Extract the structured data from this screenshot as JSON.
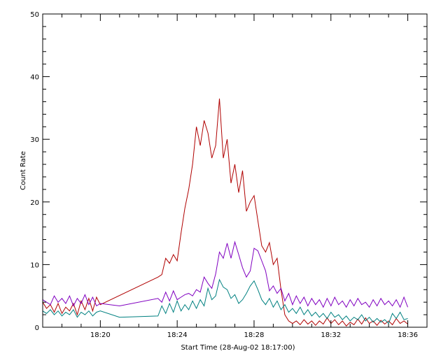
{
  "chart_data": {
    "type": "line",
    "title": "",
    "xlabel": "Start Time (28-Aug-02 18:17:00)",
    "ylabel": "Count Rate",
    "x_unit": "time of day (minutes since 18:00)",
    "xlim": [
      17.0,
      37.0
    ],
    "ylim": [
      0,
      50
    ],
    "x_ticks": [
      {
        "value": 20,
        "label": "18:20"
      },
      {
        "value": 24,
        "label": "18:24"
      },
      {
        "value": 28,
        "label": "18:28"
      },
      {
        "value": 32,
        "label": "18:32"
      },
      {
        "value": 36,
        "label": "18:36"
      }
    ],
    "y_ticks": [
      {
        "value": 0,
        "label": "0"
      },
      {
        "value": 10,
        "label": "10"
      },
      {
        "value": 20,
        "label": "20"
      },
      {
        "value": 30,
        "label": "30"
      },
      {
        "value": 40,
        "label": "40"
      },
      {
        "value": 50,
        "label": "50"
      }
    ],
    "grid": false,
    "legend": "none",
    "series": [
      {
        "color": "#b00000",
        "points": [
          [
            17.0,
            4.0
          ],
          [
            17.2,
            3.0
          ],
          [
            17.4,
            3.6
          ],
          [
            17.6,
            2.4
          ],
          [
            17.8,
            3.8
          ],
          [
            18.0,
            2.2
          ],
          [
            18.2,
            3.2
          ],
          [
            18.4,
            2.6
          ],
          [
            18.6,
            3.8
          ],
          [
            18.8,
            2.0
          ],
          [
            19.0,
            4.2
          ],
          [
            19.2,
            2.8
          ],
          [
            19.4,
            4.6
          ],
          [
            19.6,
            2.6
          ],
          [
            19.8,
            4.8
          ],
          [
            20.0,
            3.6
          ],
          [
            23.0,
            8.0
          ],
          [
            23.2,
            8.4
          ],
          [
            23.4,
            11.0
          ],
          [
            23.6,
            10.2
          ],
          [
            23.8,
            11.6
          ],
          [
            24.0,
            10.6
          ],
          [
            24.2,
            15.0
          ],
          [
            24.4,
            19.0
          ],
          [
            24.6,
            22.0
          ],
          [
            24.8,
            26.0
          ],
          [
            25.0,
            32.0
          ],
          [
            25.2,
            29.0
          ],
          [
            25.4,
            33.0
          ],
          [
            25.6,
            31.0
          ],
          [
            25.8,
            27.0
          ],
          [
            26.0,
            29.0
          ],
          [
            26.2,
            36.5
          ],
          [
            26.4,
            27.0
          ],
          [
            26.6,
            30.0
          ],
          [
            26.8,
            23.0
          ],
          [
            27.0,
            26.0
          ],
          [
            27.2,
            21.5
          ],
          [
            27.4,
            25.0
          ],
          [
            27.6,
            18.5
          ],
          [
            27.8,
            20.0
          ],
          [
            28.0,
            21.0
          ],
          [
            28.2,
            17.0
          ],
          [
            28.4,
            13.0
          ],
          [
            28.6,
            12.0
          ],
          [
            28.8,
            13.5
          ],
          [
            29.0,
            10.0
          ],
          [
            29.2,
            11.0
          ],
          [
            29.4,
            6.0
          ],
          [
            29.6,
            2.0
          ],
          [
            29.8,
            1.0
          ],
          [
            30.0,
            0.6
          ],
          [
            30.2,
            1.0
          ],
          [
            30.4,
            0.4
          ],
          [
            30.6,
            1.2
          ],
          [
            30.8,
            0.5
          ],
          [
            31.0,
            1.0
          ],
          [
            31.2,
            0.3
          ],
          [
            31.4,
            1.0
          ],
          [
            31.6,
            0.5
          ],
          [
            31.8,
            1.5
          ],
          [
            32.0,
            0.6
          ],
          [
            32.2,
            1.2
          ],
          [
            32.4,
            0.4
          ],
          [
            32.6,
            1.0
          ],
          [
            32.8,
            0.2
          ],
          [
            33.0,
            0.8
          ],
          [
            33.2,
            0.4
          ],
          [
            33.4,
            1.3
          ],
          [
            33.6,
            0.5
          ],
          [
            33.8,
            1.5
          ],
          [
            34.0,
            0.6
          ],
          [
            34.2,
            1.0
          ],
          [
            34.4,
            0.3
          ],
          [
            34.6,
            1.1
          ],
          [
            34.8,
            0.5
          ],
          [
            35.0,
            1.0
          ],
          [
            35.2,
            0.4
          ],
          [
            35.4,
            1.4
          ],
          [
            35.6,
            0.6
          ],
          [
            35.8,
            1.0
          ],
          [
            36.0,
            0.5
          ]
        ]
      },
      {
        "color": "#8000c0",
        "points": [
          [
            17.0,
            4.4
          ],
          [
            17.2,
            4.0
          ],
          [
            17.4,
            3.6
          ],
          [
            17.6,
            5.0
          ],
          [
            17.8,
            4.0
          ],
          [
            18.0,
            4.6
          ],
          [
            18.2,
            3.8
          ],
          [
            18.4,
            5.0
          ],
          [
            18.6,
            3.4
          ],
          [
            18.8,
            4.6
          ],
          [
            19.0,
            3.8
          ],
          [
            19.2,
            5.2
          ],
          [
            19.4,
            3.6
          ],
          [
            19.6,
            4.8
          ],
          [
            19.8,
            3.4
          ],
          [
            20.0,
            3.8
          ],
          [
            21.0,
            3.4
          ],
          [
            23.0,
            4.6
          ],
          [
            23.2,
            4.0
          ],
          [
            23.4,
            5.6
          ],
          [
            23.6,
            4.2
          ],
          [
            23.8,
            5.8
          ],
          [
            24.0,
            4.4
          ],
          [
            24.2,
            4.8
          ],
          [
            24.4,
            5.2
          ],
          [
            24.6,
            5.4
          ],
          [
            24.8,
            5.0
          ],
          [
            25.0,
            6.0
          ],
          [
            25.2,
            5.6
          ],
          [
            25.4,
            8.0
          ],
          [
            25.6,
            7.0
          ],
          [
            25.8,
            6.2
          ],
          [
            26.0,
            8.5
          ],
          [
            26.2,
            12.0
          ],
          [
            26.4,
            11.0
          ],
          [
            26.6,
            13.4
          ],
          [
            26.8,
            11.0
          ],
          [
            27.0,
            13.6
          ],
          [
            27.2,
            11.6
          ],
          [
            27.4,
            9.5
          ],
          [
            27.6,
            8.0
          ],
          [
            27.8,
            9.0
          ],
          [
            28.0,
            12.6
          ],
          [
            28.2,
            12.2
          ],
          [
            28.4,
            10.6
          ],
          [
            28.6,
            9.0
          ],
          [
            28.8,
            5.8
          ],
          [
            29.0,
            6.6
          ],
          [
            29.2,
            5.4
          ],
          [
            29.4,
            6.2
          ],
          [
            29.6,
            4.2
          ],
          [
            29.8,
            5.4
          ],
          [
            30.0,
            3.6
          ],
          [
            30.2,
            5.0
          ],
          [
            30.4,
            3.8
          ],
          [
            30.6,
            4.8
          ],
          [
            30.8,
            3.4
          ],
          [
            31.0,
            4.6
          ],
          [
            31.2,
            3.6
          ],
          [
            31.4,
            4.4
          ],
          [
            31.6,
            3.2
          ],
          [
            31.8,
            4.6
          ],
          [
            32.0,
            3.4
          ],
          [
            32.2,
            4.8
          ],
          [
            32.4,
            3.6
          ],
          [
            32.6,
            4.2
          ],
          [
            32.8,
            3.2
          ],
          [
            33.0,
            4.4
          ],
          [
            33.2,
            3.4
          ],
          [
            33.4,
            4.6
          ],
          [
            33.6,
            3.6
          ],
          [
            33.8,
            4.0
          ],
          [
            34.0,
            3.2
          ],
          [
            34.2,
            4.4
          ],
          [
            34.4,
            3.4
          ],
          [
            34.6,
            4.6
          ],
          [
            34.8,
            3.6
          ],
          [
            35.0,
            4.2
          ],
          [
            35.2,
            3.4
          ],
          [
            35.4,
            4.4
          ],
          [
            35.6,
            3.2
          ],
          [
            35.8,
            4.8
          ],
          [
            36.0,
            3.2
          ]
        ]
      },
      {
        "color": "#008080",
        "points": [
          [
            17.0,
            2.6
          ],
          [
            17.2,
            2.2
          ],
          [
            17.4,
            2.8
          ],
          [
            17.6,
            2.0
          ],
          [
            17.8,
            2.6
          ],
          [
            18.0,
            1.8
          ],
          [
            18.2,
            2.4
          ],
          [
            18.4,
            2.0
          ],
          [
            18.6,
            2.8
          ],
          [
            18.8,
            1.6
          ],
          [
            19.0,
            2.4
          ],
          [
            19.2,
            2.0
          ],
          [
            19.4,
            2.6
          ],
          [
            19.6,
            1.8
          ],
          [
            19.8,
            2.4
          ],
          [
            20.0,
            2.6
          ],
          [
            21.0,
            1.6
          ],
          [
            23.0,
            1.8
          ],
          [
            23.2,
            3.4
          ],
          [
            23.4,
            2.2
          ],
          [
            23.6,
            3.8
          ],
          [
            23.8,
            2.4
          ],
          [
            24.0,
            4.2
          ],
          [
            24.2,
            2.6
          ],
          [
            24.4,
            3.6
          ],
          [
            24.6,
            2.8
          ],
          [
            24.8,
            4.2
          ],
          [
            25.0,
            3.0
          ],
          [
            25.2,
            4.4
          ],
          [
            25.4,
            3.4
          ],
          [
            25.6,
            6.2
          ],
          [
            25.8,
            4.4
          ],
          [
            26.0,
            5.0
          ],
          [
            26.2,
            7.6
          ],
          [
            26.4,
            6.4
          ],
          [
            26.6,
            6.0
          ],
          [
            26.8,
            4.6
          ],
          [
            27.0,
            5.2
          ],
          [
            27.2,
            3.8
          ],
          [
            27.4,
            4.4
          ],
          [
            27.6,
            5.4
          ],
          [
            27.8,
            6.6
          ],
          [
            28.0,
            7.4
          ],
          [
            28.2,
            6.0
          ],
          [
            28.4,
            4.4
          ],
          [
            28.6,
            3.6
          ],
          [
            28.8,
            4.6
          ],
          [
            29.0,
            3.2
          ],
          [
            29.2,
            4.2
          ],
          [
            29.4,
            2.8
          ],
          [
            29.6,
            3.6
          ],
          [
            29.8,
            2.4
          ],
          [
            30.0,
            3.0
          ],
          [
            30.2,
            2.2
          ],
          [
            30.4,
            3.2
          ],
          [
            30.6,
            2.0
          ],
          [
            30.8,
            2.8
          ],
          [
            31.0,
            1.8
          ],
          [
            31.2,
            2.4
          ],
          [
            31.4,
            1.6
          ],
          [
            31.6,
            2.2
          ],
          [
            31.8,
            1.4
          ],
          [
            32.0,
            2.4
          ],
          [
            32.2,
            1.6
          ],
          [
            32.4,
            2.0
          ],
          [
            32.6,
            1.2
          ],
          [
            32.8,
            1.8
          ],
          [
            33.0,
            1.0
          ],
          [
            33.2,
            1.6
          ],
          [
            33.4,
            1.2
          ],
          [
            33.6,
            2.0
          ],
          [
            33.8,
            1.0
          ],
          [
            34.0,
            1.6
          ],
          [
            34.2,
            0.8
          ],
          [
            34.4,
            1.4
          ],
          [
            34.6,
            0.8
          ],
          [
            34.8,
            1.2
          ],
          [
            35.0,
            0.6
          ],
          [
            35.2,
            2.2
          ],
          [
            35.4,
            1.4
          ],
          [
            35.6,
            2.4
          ],
          [
            35.8,
            1.2
          ],
          [
            36.0,
            1.4
          ]
        ]
      }
    ]
  }
}
